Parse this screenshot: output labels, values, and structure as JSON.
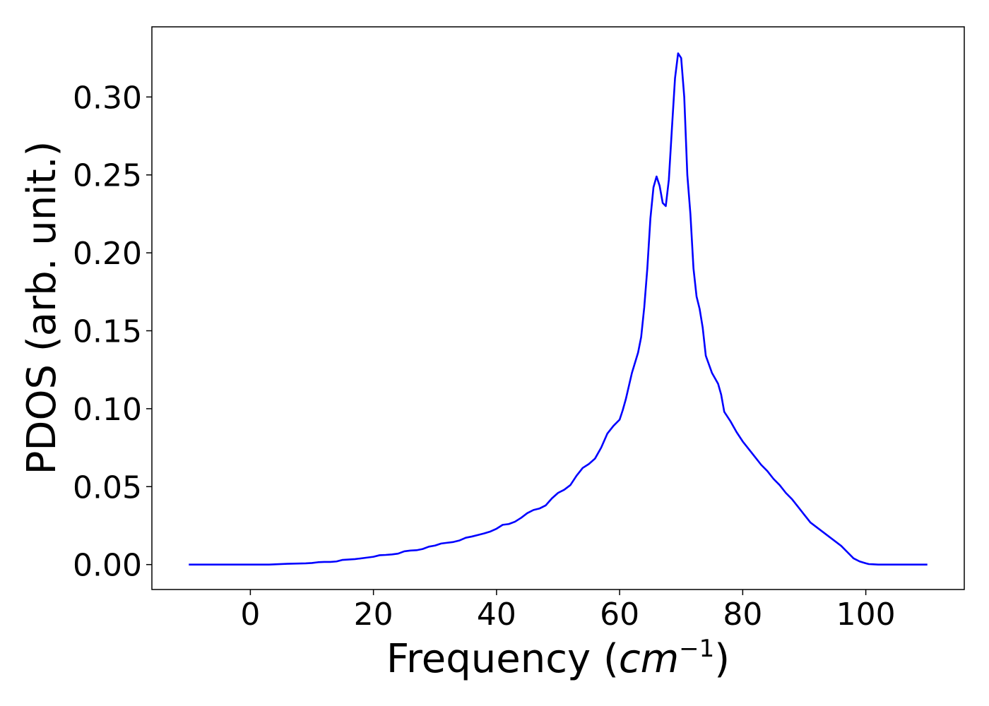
{
  "chart_data": {
    "type": "line",
    "xlabel_main": "Frequency (",
    "xlabel_italic": "cm",
    "xlabel_sup": "−1",
    "xlabel_end": ")",
    "ylabel": "PDOS (arb. unit.)",
    "xlim": [
      -16,
      116
    ],
    "ylim": [
      -0.016,
      0.345
    ],
    "xticks": [
      0,
      20,
      40,
      60,
      80,
      100
    ],
    "yticks": [
      0.0,
      0.05,
      0.1,
      0.15,
      0.2,
      0.25,
      0.3
    ],
    "ytick_labels": [
      "0.00",
      "0.05",
      "0.10",
      "0.15",
      "0.20",
      "0.25",
      "0.30"
    ],
    "xtick_labels": [
      "0",
      "20",
      "40",
      "60",
      "80",
      "100"
    ],
    "grid": false,
    "series": [
      {
        "color": "#0000ff",
        "x": [
          -10,
          0,
          3,
          6,
          9,
          10,
          11,
          12,
          13,
          14,
          15,
          17,
          19,
          20,
          21,
          22,
          23,
          24,
          25,
          26,
          27,
          28,
          29,
          30,
          31,
          32,
          33,
          34,
          35,
          36,
          37,
          38,
          39,
          40,
          41,
          42,
          43,
          44,
          45,
          46,
          47,
          48,
          49,
          50,
          51,
          52,
          53,
          54,
          55,
          56,
          57,
          58,
          59,
          60,
          60.5,
          61,
          62,
          63,
          63.5,
          64,
          64.5,
          65,
          65.5,
          66,
          66.5,
          67,
          67.5,
          68,
          68.5,
          69,
          69.5,
          70,
          70.5,
          71,
          71.5,
          72,
          72.5,
          73,
          73.5,
          74,
          75,
          76,
          76.5,
          77,
          78,
          79,
          80,
          81,
          82,
          83,
          84,
          85,
          86,
          87,
          88,
          89,
          90,
          91,
          92,
          93,
          94,
          95,
          96,
          97,
          98,
          99,
          100,
          100.5,
          101,
          101.5,
          102,
          103,
          105,
          110
        ],
        "y": [
          0,
          0,
          0,
          0.0005,
          0.0008,
          0.001,
          0.0015,
          0.0017,
          0.0017,
          0.002,
          0.003,
          0.0035,
          0.0045,
          0.005,
          0.006,
          0.0062,
          0.0065,
          0.007,
          0.0085,
          0.009,
          0.0092,
          0.01,
          0.0115,
          0.0122,
          0.0135,
          0.014,
          0.0145,
          0.0155,
          0.0172,
          0.018,
          0.019,
          0.02,
          0.0212,
          0.023,
          0.0255,
          0.026,
          0.0275,
          0.03,
          0.033,
          0.035,
          0.036,
          0.038,
          0.0425,
          0.046,
          0.048,
          0.051,
          0.057,
          0.062,
          0.0645,
          0.068,
          0.075,
          0.084,
          0.089,
          0.093,
          0.099,
          0.106,
          0.123,
          0.136,
          0.146,
          0.165,
          0.19,
          0.222,
          0.242,
          0.249,
          0.243,
          0.232,
          0.23,
          0.247,
          0.28,
          0.312,
          0.328,
          0.325,
          0.3,
          0.25,
          0.225,
          0.19,
          0.172,
          0.164,
          0.152,
          0.134,
          0.123,
          0.116,
          0.109,
          0.098,
          0.092,
          0.085,
          0.079,
          0.074,
          0.069,
          0.064,
          0.06,
          0.055,
          0.051,
          0.046,
          0.042,
          0.037,
          0.032,
          0.027,
          0.024,
          0.021,
          0.018,
          0.015,
          0.012,
          0.008,
          0.004,
          0.002,
          0.0008,
          0.0003,
          0.0002,
          0.0001,
          0,
          0,
          0,
          0
        ]
      }
    ]
  }
}
